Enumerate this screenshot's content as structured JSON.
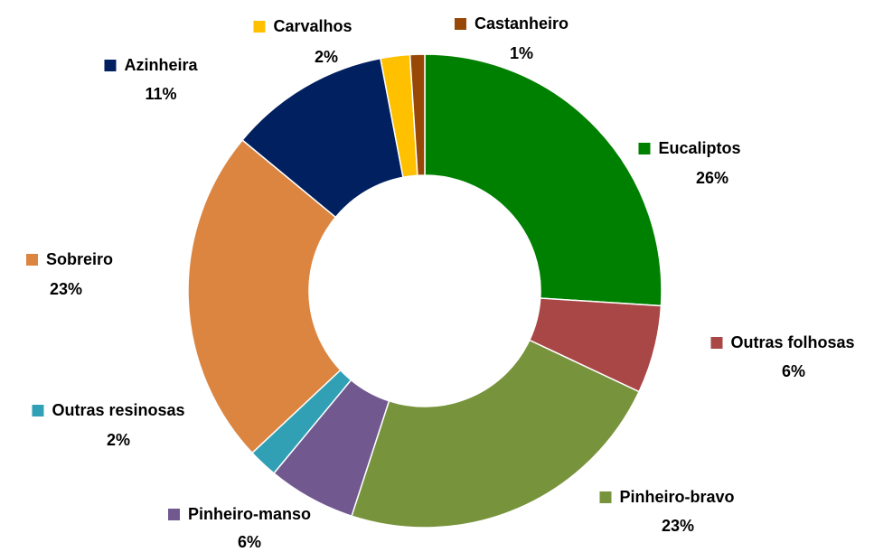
{
  "chart_data": {
    "type": "donut",
    "categories": [
      "Eucaliptos",
      "Outras folhosas",
      "Pinheiro-bravo",
      "Pinheiro-manso",
      "Outras resinosas",
      "Sobreiro",
      "Azinheira",
      "Carvalhos",
      "Castanheiro"
    ],
    "values": [
      26,
      6,
      23,
      6,
      2,
      23,
      11,
      2,
      1
    ],
    "value_labels": [
      "26%",
      "6%",
      "23%",
      "6%",
      "2%",
      "23%",
      "11%",
      "2%",
      "1%"
    ],
    "colors": [
      "#008000",
      "#a94646",
      "#77933c",
      "#71588f",
      "#31a0b5",
      "#dc8540",
      "#002060",
      "#ffc000",
      "#974806"
    ]
  }
}
